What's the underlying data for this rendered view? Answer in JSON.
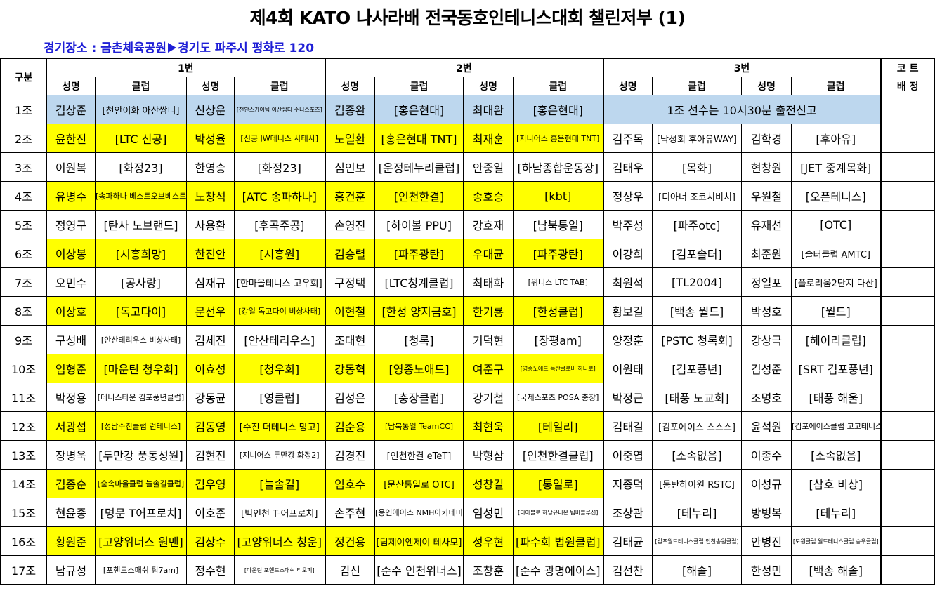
{
  "title": "제4회 KATO 나사라배 전국동호인테니스대회 챌린저부 (1)",
  "venue": {
    "label": "경기장소 :",
    "place": "금촌체육공원",
    "address": "경기도 파주시 평화로 120"
  },
  "header": {
    "group_label": "구분",
    "courts": [
      "1번",
      "2번",
      "3번"
    ],
    "court_assign_1": "코 트",
    "court_assign_2": "배 정",
    "name_col": "성명",
    "club_col": "클럽"
  },
  "notice": "1조 선수는 10시30분 출전신고",
  "rows": [
    {
      "g": "1조",
      "c": [
        [
          "김상준",
          "[천안이화 아산쌈디]"
        ],
        [
          "신상운",
          "[천안스카이팀 아산쌈디 주니스포츠]"
        ],
        [
          "김종완",
          "[홍은현대]"
        ],
        [
          "최대완",
          "[홍은현대]"
        ]
      ]
    },
    {
      "g": "2조",
      "c": [
        [
          "윤한진",
          "[LTC 신공]"
        ],
        [
          "박성율",
          "[신공 JW테니스 사태사]"
        ],
        [
          "노일환",
          "[홍은현대 TNT]"
        ],
        [
          "최재훈",
          "[지니어스 홍은현대 TNT]"
        ],
        [
          "김주목",
          "[낙성회 후아유WAY]"
        ],
        [
          "김학경",
          "[후아유]"
        ]
      ]
    },
    {
      "g": "3조",
      "c": [
        [
          "이원복",
          "[화정23]"
        ],
        [
          "한영승",
          "[화정23]"
        ],
        [
          "심인보",
          "[운정테누리클럽]"
        ],
        [
          "안중일",
          "[하남종합운동장]"
        ],
        [
          "김태우",
          "[목화]"
        ],
        [
          "현창원",
          "[JET 중계목화]"
        ]
      ]
    },
    {
      "g": "4조",
      "c": [
        [
          "유병수",
          "[송파하나 베스트오브베스트]"
        ],
        [
          "노창석",
          "[ATC 송파하나]"
        ],
        [
          "홍건훈",
          "[인천한결]"
        ],
        [
          "송호승",
          "[kbt]"
        ],
        [
          "정상우",
          "[디아너 조코치비치]"
        ],
        [
          "우원철",
          "[오픈테니스]"
        ]
      ]
    },
    {
      "g": "5조",
      "c": [
        [
          "정영구",
          "[탄사 노브랜드]"
        ],
        [
          "사용환",
          "[후곡주공]"
        ],
        [
          "손영진",
          "[하이볼 PPU]"
        ],
        [
          "강호재",
          "[남북통일]"
        ],
        [
          "박주성",
          "[파주otc]"
        ],
        [
          "유재선",
          "[OTC]"
        ]
      ]
    },
    {
      "g": "6조",
      "c": [
        [
          "이상봉",
          "[시흥희망]"
        ],
        [
          "한진안",
          "[시흥원]"
        ],
        [
          "김승렬",
          "[파주광탄]"
        ],
        [
          "우대균",
          "[파주광탄]"
        ],
        [
          "이강희",
          "[김포솔터]"
        ],
        [
          "최준원",
          "[솔터클럽 AMTC]"
        ]
      ]
    },
    {
      "g": "7조",
      "c": [
        [
          "오민수",
          "[공사랑]"
        ],
        [
          "심재규",
          "[한마을테니스 고우회]"
        ],
        [
          "구정택",
          "[LTC청계클럽]"
        ],
        [
          "최태화",
          "[위너스 LTC TAB]"
        ],
        [
          "최원석",
          "[TL2004]"
        ],
        [
          "정일포",
          "[플로리움2단지 다산]"
        ]
      ]
    },
    {
      "g": "8조",
      "c": [
        [
          "이상호",
          "[독고다이]"
        ],
        [
          "문선우",
          "[강일 독고다이 비상사태]"
        ],
        [
          "이현철",
          "[한성 양지금호]"
        ],
        [
          "한기룡",
          "[한성클럽]"
        ],
        [
          "황보길",
          "[백송 월드]"
        ],
        [
          "박성호",
          "[월드]"
        ]
      ]
    },
    {
      "g": "9조",
      "c": [
        [
          "구성배",
          "[안산테리우스 비상사태]"
        ],
        [
          "김세진",
          "[안산테리우스]"
        ],
        [
          "조대현",
          "[청록]"
        ],
        [
          "기덕현",
          "[장평am]"
        ],
        [
          "양정훈",
          "[PSTC 청록회]"
        ],
        [
          "강상극",
          "[헤이리클럽]"
        ]
      ]
    },
    {
      "g": "10조",
      "c": [
        [
          "임형준",
          "[마운틴 청우회]"
        ],
        [
          "이효성",
          "[청우회]"
        ],
        [
          "강동혁",
          "[영종노애드]"
        ],
        [
          "여준구",
          "[영종노애드 독산클로버 하나로]"
        ],
        [
          "이원태",
          "[김포풍년]"
        ],
        [
          "김성준",
          "[SRT 김포풍년]"
        ]
      ]
    },
    {
      "g": "11조",
      "c": [
        [
          "박정용",
          "[테니스타운 김포풍년클럽]"
        ],
        [
          "강동균",
          "[영클럽]"
        ],
        [
          "김성은",
          "[충장클럽]"
        ],
        [
          "강기철",
          "[국제스포츠 POSA 충장]"
        ],
        [
          "박정근",
          "[태풍 노교회]"
        ],
        [
          "조명호",
          "[태풍 해울]"
        ]
      ]
    },
    {
      "g": "12조",
      "c": [
        [
          "서광섭",
          "[성남수진클럽 런테니스]"
        ],
        [
          "김동영",
          "[수진 더테니스 망고]"
        ],
        [
          "김순용",
          "[남북통일 TeamCC]"
        ],
        [
          "최현욱",
          "[테일리]"
        ],
        [
          "김태길",
          "[김포에이스 스스스]"
        ],
        [
          "윤석원",
          "[김포에이스클럽 고고테니스]"
        ]
      ]
    },
    {
      "g": "13조",
      "c": [
        [
          "장병욱",
          "[두만강 풍동성원]"
        ],
        [
          "김현진",
          "[지니어스 두만강 화정2]"
        ],
        [
          "김경진",
          "[인천한결 eTeT]"
        ],
        [
          "박형삼",
          "[인천한결클럽]"
        ],
        [
          "이중엽",
          "[소속없음]"
        ],
        [
          "이종수",
          "[소속없음]"
        ]
      ]
    },
    {
      "g": "14조",
      "c": [
        [
          "김종순",
          "[숲속마을클럽 늘솔길클럽]"
        ],
        [
          "김우영",
          "[늘솔길]"
        ],
        [
          "임호수",
          "[문산통일로 OTC]"
        ],
        [
          "성창길",
          "[통일로]"
        ],
        [
          "지종덕",
          "[동탄하이원 RSTC]"
        ],
        [
          "이성규",
          "[삼호 비상]"
        ]
      ]
    },
    {
      "g": "15조",
      "c": [
        [
          "현윤종",
          "[명문 T어프로치]"
        ],
        [
          "이호준",
          "[빅인천 T-어프로치]"
        ],
        [
          "손주현",
          "[용인에이스 NMH아카데미]"
        ],
        [
          "염성민",
          "[디아볼로 하남유니온 팀바볼루션]"
        ],
        [
          "조상관",
          "[테누리]"
        ],
        [
          "방병복",
          "[테누리]"
        ]
      ]
    },
    {
      "g": "16조",
      "c": [
        [
          "황원준",
          "[고양위너스 원맨]"
        ],
        [
          "김상수",
          "[고양위너스 청운]"
        ],
        [
          "정건용",
          "[팀제이엔제이 테사모]"
        ],
        [
          "성우현",
          "[파수회 법원클럽]"
        ],
        [
          "김태균",
          "[김포월드테니스클럽 인천송원클럽]"
        ],
        [
          "안병진",
          "[도원클럽 월드테니스클럽 송우클럽]"
        ]
      ]
    },
    {
      "g": "17조",
      "c": [
        [
          "남규성",
          "[포핸드스매쉬 팀7am]"
        ],
        [
          "정수현",
          "[마운틴 포핸드스매쉬 티오피]"
        ],
        [
          "김신",
          "[순수 인천위너스]"
        ],
        [
          "조창훈",
          "[순수 광명에이스]"
        ],
        [
          "김선찬",
          "[해솔]"
        ],
        [
          "한성민",
          "[백송 해솔]"
        ]
      ]
    }
  ]
}
